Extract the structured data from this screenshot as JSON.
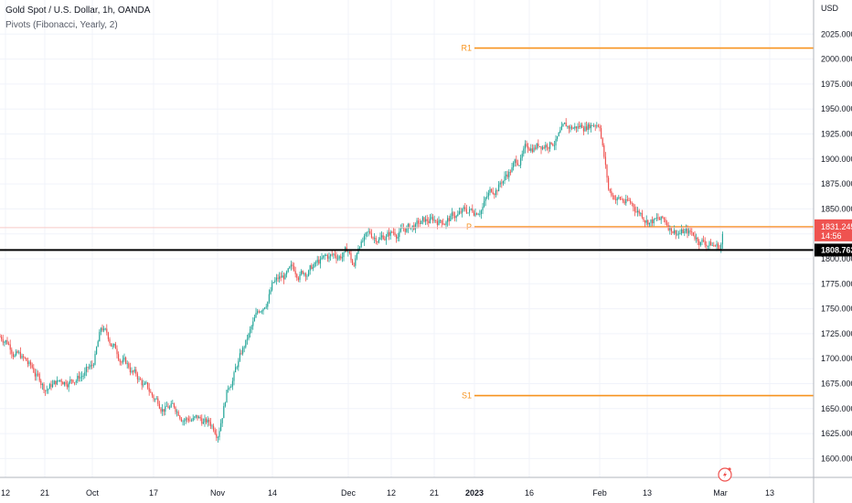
{
  "header": {
    "symbol": "Gold Spot / U.S. Dollar, 1h, OANDA",
    "indicator": "Pivots (Fibonacci, Yearly, 2)"
  },
  "axis": {
    "currency": "USD",
    "y_ticks": [
      "1600.000",
      "1625.000",
      "1650.000",
      "1675.000",
      "1700.000",
      "1725.000",
      "1750.000",
      "1775.000",
      "1800.000",
      "1825.000",
      "1850.000",
      "1875.000",
      "1900.000",
      "1925.000",
      "1950.000",
      "1975.000",
      "2000.000",
      "2025.000"
    ],
    "x_ticks": [
      "12",
      "21",
      "Oct",
      "17",
      "Nov",
      "14",
      "Dec",
      "12",
      "21",
      "2023",
      "16",
      "Feb",
      "13",
      "Mar",
      "13"
    ]
  },
  "price_tags": {
    "current_price": "1831.245",
    "countdown": "14:56",
    "line_price": "1808.762"
  },
  "colors": {
    "up": "#26a69a",
    "down": "#ef5350",
    "pivot": "#f7931e",
    "price_tag": "#ef5350",
    "line_tag": "#000000",
    "grid": "#f0f3fa"
  },
  "icons": [
    "lightning-icon"
  ],
  "chart_data": {
    "type": "candlestick",
    "title": "Gold Spot / U.S. Dollar, 1h, OANDA",
    "y_unit": "USD",
    "ylim": [
      1588,
      2050
    ],
    "grid": true,
    "pivots": [
      {
        "name": "R1",
        "value": 2011
      },
      {
        "name": "P",
        "value": 1832
      },
      {
        "name": "S1",
        "value": 1663
      }
    ],
    "horizontal_line": 1808.762,
    "last_price": 1831.245,
    "approx_close_path": [
      {
        "x": "12",
        "y": 1722
      },
      {
        "x": "21",
        "y": 1672
      },
      {
        "x": "Oct",
        "y": 1690
      },
      {
        "x": "Oct",
        "y": 1728
      },
      {
        "x": "17",
        "y": 1660
      },
      {
        "x": "Nov",
        "y": 1630
      },
      {
        "x": "Nov",
        "y": 1672
      },
      {
        "x": "14",
        "y": 1775
      },
      {
        "x": "Dec",
        "y": 1808
      },
      {
        "x": "12",
        "y": 1790
      },
      {
        "x": "21",
        "y": 1818
      },
      {
        "x": "2023",
        "y": 1848
      },
      {
        "x": "16",
        "y": 1912
      },
      {
        "x": "Feb",
        "y": 1940
      },
      {
        "x": "Feb",
        "y": 1868
      },
      {
        "x": "13",
        "y": 1843
      },
      {
        "x": "Mar",
        "y": 1812
      },
      {
        "x": "Mar",
        "y": 1831
      }
    ]
  }
}
